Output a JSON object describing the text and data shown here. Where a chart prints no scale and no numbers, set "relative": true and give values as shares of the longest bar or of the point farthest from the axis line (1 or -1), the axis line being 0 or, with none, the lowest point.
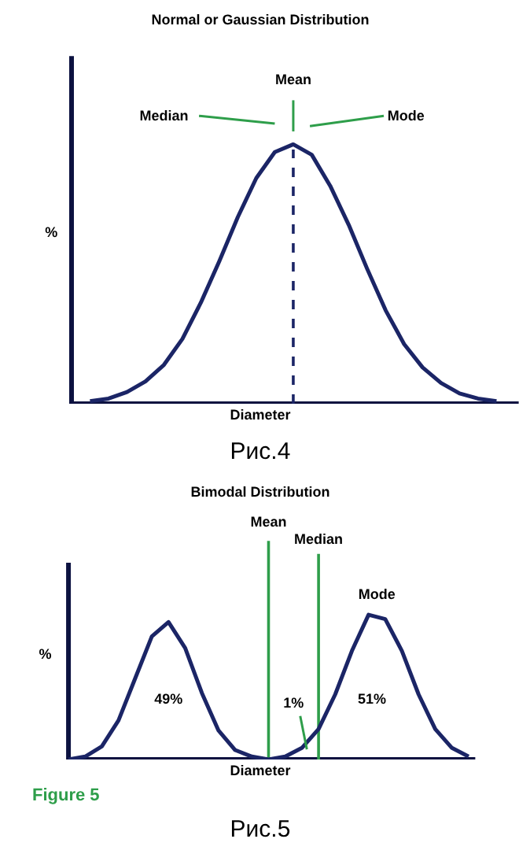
{
  "chart_data": [
    {
      "type": "line",
      "title": "Normal or Gaussian Distribution",
      "xlabel": "Diameter",
      "ylabel": "%",
      "relative": true,
      "categories": [
        null,
        null,
        null,
        null,
        null,
        null,
        null,
        null,
        null,
        null,
        null,
        null,
        null,
        null,
        null,
        null,
        null,
        null,
        null,
        null,
        null,
        null,
        null,
        null,
        null
      ],
      "series": [
        {
          "color": "#1b2566",
          "values": [
            null,
            0.01,
            0.02,
            0.045,
            0.086,
            0.15,
            0.25,
            0.39,
            0.55,
            0.72,
            0.87,
            0.97,
            1,
            0.96,
            0.84,
            0.69,
            0.52,
            0.36,
            0.23,
            0.14,
            0.08,
            0.04,
            0.02,
            0.01,
            null
          ]
        }
      ],
      "annotations": [
        "Median",
        "Mean",
        "Mode",
        "Рис.4"
      ]
    },
    {
      "type": "line",
      "title": "Bimodal Distribution",
      "xlabel": "Diameter",
      "ylabel": "%",
      "relative": true,
      "categories": [
        null,
        null,
        null,
        null,
        null,
        null,
        null,
        null,
        null,
        null,
        null,
        null,
        null,
        null,
        null,
        null,
        null,
        null,
        null,
        null,
        null,
        null,
        null,
        null,
        null
      ],
      "series": [
        {
          "color": "#1b2566",
          "values": [
            0,
            0.02,
            0.09,
            0.27,
            0.56,
            0.85,
            0.95,
            0.77,
            0.46,
            0.2,
            0.065,
            0.02,
            0,
            0.02,
            0.08,
            0.21,
            0.45,
            0.75,
            1,
            0.97,
            0.75,
            0.45,
            0.21,
            0.08,
            0.02
          ]
        }
      ],
      "annotations": [
        "Mean",
        "Median",
        "49%",
        "1%",
        "51%",
        "Mode",
        "Figure 5",
        "Рис.5"
      ]
    }
  ]
}
